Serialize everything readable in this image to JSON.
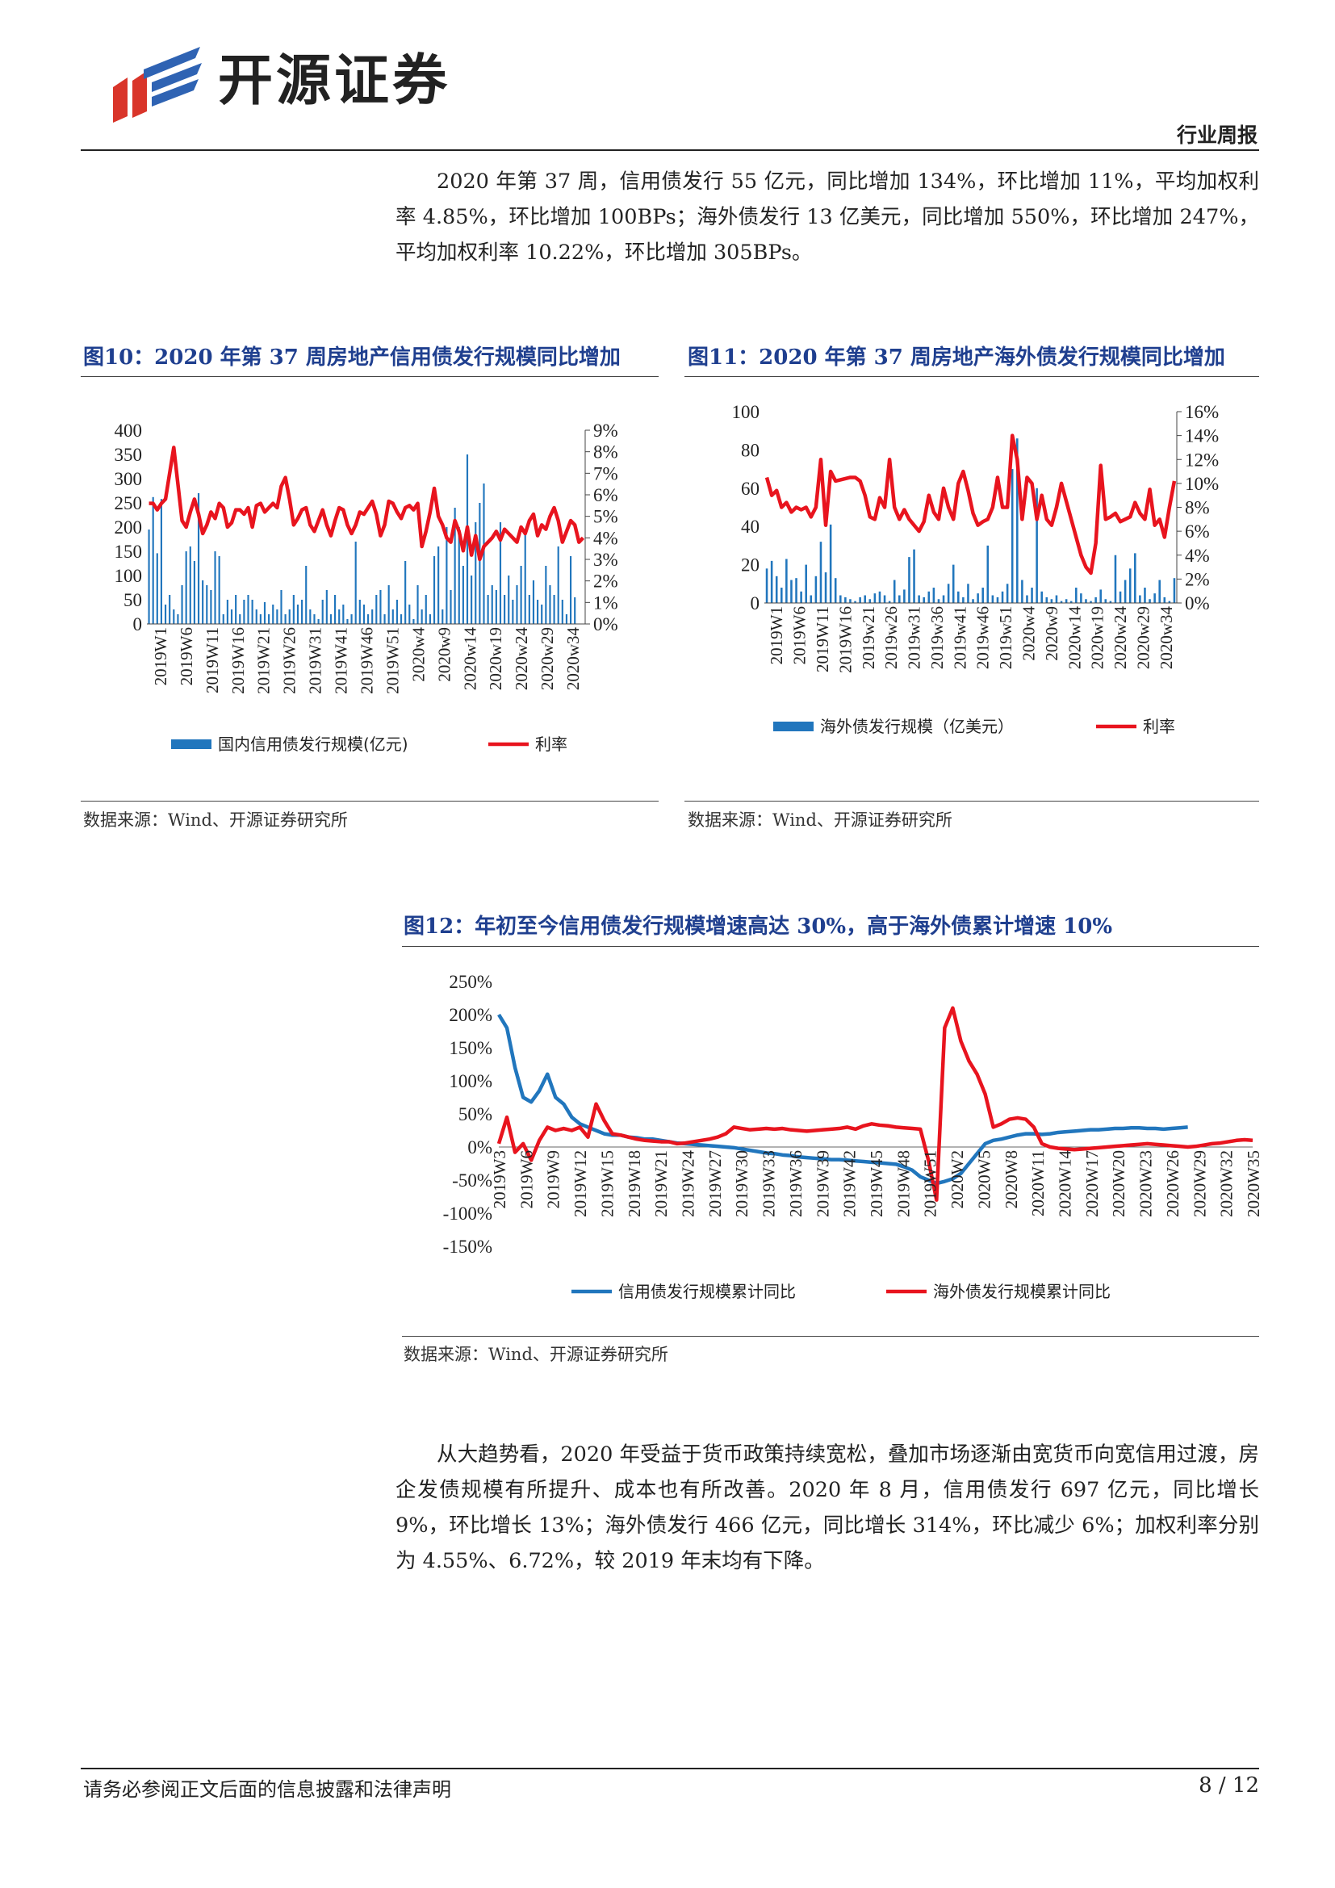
{
  "header": {
    "brand_name": "开源证券",
    "report_type": "行业周报",
    "colors": {
      "logo_red": "#d9352a",
      "logo_blue": "#2f63b3",
      "rule": "#222222"
    }
  },
  "paragraphs": {
    "p1": "2020 年第 37 周，信用债发行 55 亿元，同比增加 134%，环比增加 11%，平均加权利率 4.85%，环比增加 100BPs；海外债发行 13 亿美元，同比增加 550%，环比增加 247%，平均加权利率 10.22%，环比增加 305BPs。",
    "p2": "从大趋势看，2020 年受益于货币政策持续宽松，叠加市场逐渐由宽货币向宽信用过渡，房企发债规模有所提升、成本也有所改善。2020 年 8 月，信用债发行 697 亿元，同比增长 9%，环比增长 13%；海外债发行 466 亿元，同比增长 314%，环比减少 6%；加权利率分别为 4.55%、6.72%，较 2019 年末均有下降。"
  },
  "figures": {
    "fig10": {
      "title": "图10：2020 年第 37 周房地产信用债发行规模同比增加",
      "source": "数据来源：Wind、开源证券研究所"
    },
    "fig11": {
      "title": "图11：2020 年第 37 周房地产海外债发行规模同比增加",
      "source": "数据来源：Wind、开源证券研究所"
    },
    "fig12": {
      "title": "图12：年初至今信用债发行规模增速高达 30%，高于海外债累计增速 10%",
      "source": "数据来源：Wind、开源证券研究所"
    }
  },
  "chart_data": [
    {
      "id": "fig10",
      "type": "bar+line",
      "title": "图10：2020 年第 37 周房地产信用债发行规模同比增加",
      "colors": {
        "bar": "#2176bd",
        "line": "#e8141e"
      },
      "y_left": {
        "ylim": [
          0,
          400
        ],
        "ticks": [
          "0",
          "50",
          "100",
          "150",
          "200",
          "250",
          "300",
          "350",
          "400"
        ]
      },
      "y_right": {
        "ylim": [
          0,
          9
        ],
        "ticks": [
          "0%",
          "1%",
          "2%",
          "3%",
          "4%",
          "5%",
          "6%",
          "7%",
          "8%",
          "9%"
        ]
      },
      "x_tick_labels": [
        "2019W1",
        "2019W6",
        "2019W11",
        "2019W16",
        "2019W21",
        "2019W26",
        "2019W31",
        "2019W41",
        "2019W46",
        "2019W51",
        "2020w4",
        "2020w9",
        "2020w14",
        "2020w19",
        "2020w24",
        "2020w29",
        "2020w34"
      ],
      "series": [
        {
          "name": "国内信用债发行规模(亿元)",
          "axis": "left",
          "values": [
            195,
            262,
            146,
            258,
            40,
            60,
            30,
            20,
            80,
            150,
            160,
            130,
            270,
            90,
            80,
            70,
            150,
            140,
            20,
            50,
            30,
            60,
            20,
            50,
            60,
            50,
            30,
            20,
            45,
            20,
            40,
            30,
            70,
            20,
            30,
            60,
            40,
            50,
            120,
            30,
            20,
            10,
            50,
            70,
            20,
            60,
            30,
            40,
            10,
            20,
            170,
            50,
            40,
            20,
            30,
            60,
            70,
            20,
            80,
            30,
            50,
            20,
            130,
            40,
            10,
            80,
            30,
            60,
            20,
            140,
            160,
            30,
            200,
            70,
            240,
            200,
            120,
            350,
            100,
            210,
            250,
            290,
            60,
            80,
            70,
            210,
            60,
            100,
            50,
            80,
            120,
            190,
            60,
            90,
            50,
            40,
            120,
            80,
            60,
            160,
            50,
            20,
            140,
            55
          ]
        },
        {
          "name": "利率",
          "axis": "right",
          "values": [
            5.6,
            5.6,
            5.3,
            5.6,
            5.8,
            7.0,
            8.2,
            6.5,
            4.8,
            4.5,
            5.2,
            5.8,
            5.1,
            4.2,
            4.6,
            5.2,
            4.9,
            5.6,
            5.4,
            4.5,
            4.7,
            5.3,
            5.3,
            5.1,
            5.4,
            4.5,
            5.5,
            5.6,
            5.2,
            5.4,
            5.6,
            5.4,
            6.4,
            6.8,
            5.8,
            4.6,
            4.9,
            5.3,
            5.4,
            4.6,
            4.3,
            4.8,
            5.3,
            4.6,
            4.1,
            4.8,
            5.4,
            5.3,
            4.6,
            4.2,
            4.6,
            5.2,
            5.1,
            5.4,
            5.7,
            5.1,
            4.1,
            4.6,
            5.7,
            5.6,
            5.2,
            4.9,
            5.4,
            5.5,
            5.3,
            5.6,
            3.6,
            4.3,
            5.2,
            6.3,
            5.0,
            4.6,
            4.0,
            3.8,
            4.8,
            4.3,
            3.4,
            4.5,
            3.2,
            4.1,
            3.0,
            3.6,
            3.8,
            4.0,
            4.3,
            3.9,
            4.4,
            4.2,
            4.0,
            3.8,
            4.5,
            4.2,
            4.8,
            5.1,
            4.1,
            4.6,
            4.4,
            5.0,
            5.4,
            4.8,
            3.8,
            4.3,
            4.8,
            4.6,
            3.8,
            4.0
          ]
        }
      ]
    },
    {
      "id": "fig11",
      "type": "bar+line",
      "title": "图11：2020 年第 37 周房地产海外债发行规模同比增加",
      "colors": {
        "bar": "#2176bd",
        "line": "#e8141e"
      },
      "y_left": {
        "ylim": [
          0,
          100
        ],
        "ticks": [
          "0",
          "20",
          "40",
          "60",
          "80",
          "100"
        ]
      },
      "y_right": {
        "ylim": [
          0,
          16
        ],
        "ticks": [
          "0%",
          "2%",
          "4%",
          "6%",
          "8%",
          "10%",
          "12%",
          "14%",
          "16%"
        ]
      },
      "x_tick_labels": [
        "2019W1",
        "2019W6",
        "2019W11",
        "2019W16",
        "2019w21",
        "2019w26",
        "2019w31",
        "2019w36",
        "2019w41",
        "2019w46",
        "2019w51",
        "2020w4",
        "2020w9",
        "2020w14",
        "2020w19",
        "2020w24",
        "2020w29",
        "2020w34"
      ],
      "series": [
        {
          "name": "海外债发行规模（亿美元）",
          "axis": "left",
          "values": [
            18,
            22,
            14,
            8,
            23,
            12,
            13,
            6,
            20,
            4,
            14,
            32,
            16,
            41,
            13,
            4,
            3,
            2,
            1,
            3,
            4,
            2,
            5,
            6,
            4,
            1,
            12,
            4,
            7,
            24,
            28,
            4,
            3,
            6,
            8,
            2,
            4,
            10,
            20,
            6,
            3,
            10,
            2,
            5,
            8,
            30,
            4,
            3,
            6,
            10,
            70,
            86,
            12,
            4,
            8,
            60,
            6,
            3,
            2,
            4,
            1,
            2,
            1,
            8,
            5,
            2,
            1,
            3,
            7,
            2,
            1,
            25,
            6,
            12,
            18,
            26,
            4,
            8,
            2,
            5,
            12,
            3,
            1,
            13
          ]
        },
        {
          "name": "利率",
          "axis": "right",
          "values": [
            10.5,
            9.0,
            9.4,
            8.0,
            8.4,
            7.6,
            8.0,
            7.8,
            8.0,
            7.2,
            8.0,
            12.0,
            6.5,
            11.0,
            10.2,
            10.3,
            10.4,
            10.5,
            10.5,
            10.2,
            9.0,
            7.2,
            7.0,
            8.8,
            8.0,
            12.0,
            8.0,
            7.0,
            7.8,
            7.0,
            6.5,
            6.0,
            6.8,
            9.0,
            7.6,
            7.0,
            9.6,
            8.0,
            7.0,
            10.0,
            11.0,
            9.4,
            7.5,
            6.5,
            6.8,
            7.0,
            8.0,
            10.5,
            8.0,
            8.0,
            14.0,
            12.0,
            7.0,
            10.5,
            10.0,
            7.0,
            9.0,
            7.0,
            6.5,
            8.0,
            10.0,
            8.5,
            7.0,
            5.5,
            4.0,
            3.0,
            2.5,
            5.0,
            11.5,
            7.0,
            7.2,
            7.5,
            6.8,
            7.0,
            7.2,
            8.4,
            7.5,
            7.0,
            9.5,
            6.5,
            7.0,
            5.5,
            8.0,
            10.2
          ]
        }
      ]
    },
    {
      "id": "fig12",
      "type": "line",
      "title": "图12：年初至今信用债发行规模增速高达 30%，高于海外债累计增速 10%",
      "colors": {
        "credit": "#2176bd",
        "overseas": "#e8141e"
      },
      "ylim": [
        -150,
        250
      ],
      "y_ticks": [
        "-150%",
        "-100%",
        "-50%",
        "0%",
        "50%",
        "100%",
        "150%",
        "200%",
        "250%"
      ],
      "x_tick_labels": [
        "2019W3",
        "2019W6",
        "2019W9",
        "2019W12",
        "2019W15",
        "2019W18",
        "2019W21",
        "2019W24",
        "2019W27",
        "2019W30",
        "2019W33",
        "2019W36",
        "2019W39",
        "2019W42",
        "2019W45",
        "2019W48",
        "2019W51",
        "2020W2",
        "2020W5",
        "2020W8",
        "2020W11",
        "2020W14",
        "2020W17",
        "2020W20",
        "2020W23",
        "2020W26",
        "2020W29",
        "2020W32",
        "2020W35"
      ],
      "series": [
        {
          "name": "信用债发行规模累计同比",
          "values": [
            200,
            180,
            120,
            75,
            68,
            85,
            110,
            75,
            65,
            45,
            35,
            30,
            25,
            20,
            18,
            18,
            15,
            14,
            12,
            12,
            10,
            8,
            6,
            5,
            4,
            3,
            2,
            1,
            0,
            -1,
            -3,
            -5,
            -7,
            -9,
            -10,
            -12,
            -13,
            -15,
            -16,
            -17,
            -18,
            -19,
            -19,
            -20,
            -21,
            -22,
            -23,
            -24,
            -25,
            -26,
            -30,
            -35,
            -45,
            -50,
            -55,
            -52,
            -48,
            -40,
            -25,
            -10,
            5,
            10,
            12,
            15,
            18,
            20,
            20,
            19,
            20,
            22,
            23,
            24,
            25,
            26,
            26,
            27,
            28,
            28,
            29,
            29,
            28,
            28,
            27,
            28,
            29,
            30
          ]
        },
        {
          "name": "海外债发行规模累计同比",
          "values": [
            5,
            45,
            -8,
            5,
            -20,
            10,
            30,
            25,
            28,
            25,
            30,
            15,
            65,
            40,
            20,
            18,
            15,
            12,
            10,
            9,
            8,
            8,
            5,
            6,
            8,
            10,
            12,
            15,
            20,
            30,
            28,
            26,
            27,
            28,
            27,
            28,
            26,
            25,
            24,
            25,
            26,
            27,
            28,
            30,
            27,
            32,
            35,
            33,
            32,
            30,
            29,
            28,
            27,
            -20,
            -80,
            180,
            210,
            160,
            130,
            110,
            80,
            30,
            35,
            42,
            44,
            42,
            30,
            5,
            0,
            -2,
            -3,
            -4,
            -3,
            -2,
            -1,
            0,
            1,
            2,
            3,
            4,
            5,
            4,
            3,
            2,
            1,
            0,
            1,
            3,
            5,
            6,
            8,
            10,
            11,
            10
          ]
        }
      ]
    }
  ],
  "footer": {
    "disclaimer": "请务必参阅正文后面的信息披露和法律声明",
    "page": "8 / 12"
  }
}
